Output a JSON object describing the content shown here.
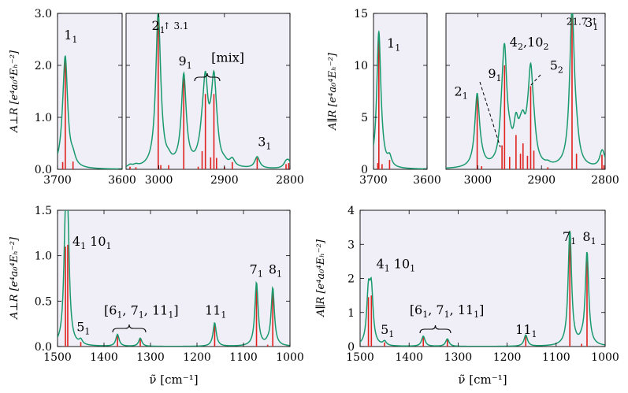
{
  "chart_data": [
    {
      "name": "perp-CH",
      "type": "line",
      "ylabel": "A⊥R [e⁴a₀⁴Eₕ⁻²]",
      "ylim": [
        0,
        3.0
      ],
      "yticks": [
        0.0,
        1.0,
        2.0,
        3.0
      ],
      "ytick_labels": [
        "0.0",
        "1.0",
        "2.0",
        "3.0"
      ],
      "width_cm": 8,
      "segments": [
        {
          "xlim": [
            3700,
            3600
          ],
          "xticks": [
            3700,
            3600
          ],
          "xtick_labels": [
            "3700",
            "3600"
          ]
        },
        {
          "xlim": [
            3050,
            2800
          ],
          "xticks": [
            3000,
            2900,
            2800
          ],
          "xtick_labels": [
            "3000",
            "2900",
            "2800"
          ]
        }
      ],
      "sticks": [
        {
          "x": 3688,
          "y": 2.08
        },
        {
          "x": 3692,
          "y": 0.14
        },
        {
          "x": 3676,
          "y": 0.15
        },
        {
          "x": 3044,
          "y": 0.05
        },
        {
          "x": 3035,
          "y": 0.04
        },
        {
          "x": 3001,
          "y": 2.95
        },
        {
          "x": 2997,
          "y": 0.08
        },
        {
          "x": 2985,
          "y": 0.08
        },
        {
          "x": 2962,
          "y": 1.75
        },
        {
          "x": 2940,
          "y": 0.05
        },
        {
          "x": 2934,
          "y": 0.35
        },
        {
          "x": 2929,
          "y": 1.45
        },
        {
          "x": 2921,
          "y": 0.23
        },
        {
          "x": 2916,
          "y": 1.45
        },
        {
          "x": 2912,
          "y": 0.22
        },
        {
          "x": 2900,
          "y": 0.05
        },
        {
          "x": 2888,
          "y": 0.14
        },
        {
          "x": 2850,
          "y": 0.22
        },
        {
          "x": 2806,
          "y": 0.1
        },
        {
          "x": 2802,
          "y": 0.12
        }
      ],
      "annotations": [
        {
          "label": "1",
          "sub": "1",
          "x": 3690,
          "y": 2.5
        },
        {
          "label": "2",
          "sub": "1",
          "x": 3011,
          "y": 2.68
        },
        {
          "label": "↑ 3.1",
          "x": 2994,
          "y": 2.7
        },
        {
          "label": "9",
          "sub": "1",
          "x": 2970,
          "y": 2.0
        },
        {
          "label": "[mix]",
          "x": 2920,
          "y": 2.07
        },
        {
          "label": "3",
          "sub": "1",
          "x": 2849,
          "y": 0.45
        }
      ]
    },
    {
      "name": "par-CH",
      "type": "line",
      "ylabel": "A∥R [e⁴a₀⁴Eₕ⁻²]",
      "ylim": [
        0,
        15
      ],
      "yticks": [
        0,
        5,
        10,
        15
      ],
      "ytick_labels": [
        "0",
        "5",
        "10",
        "15"
      ],
      "segments": [
        {
          "xlim": [
            3700,
            3600
          ],
          "xticks": [
            3700,
            3600
          ],
          "xtick_labels": [
            "3700",
            "3600"
          ]
        },
        {
          "xlim": [
            3050,
            2800
          ],
          "xticks": [
            3000,
            2900,
            2800
          ],
          "xtick_labels": [
            "3000",
            "2900",
            "2800"
          ]
        }
      ],
      "sticks": [
        {
          "x": 3690,
          "y": 12.5
        },
        {
          "x": 3692,
          "y": 0.6
        },
        {
          "x": 3684,
          "y": 0.5
        },
        {
          "x": 3670,
          "y": 0.9
        },
        {
          "x": 3001,
          "y": 7.0
        },
        {
          "x": 2994,
          "y": 0.3
        },
        {
          "x": 2962,
          "y": 2.3
        },
        {
          "x": 2958,
          "y": 10.0
        },
        {
          "x": 2950,
          "y": 1.2
        },
        {
          "x": 2940,
          "y": 3.3
        },
        {
          "x": 2933,
          "y": 1.5
        },
        {
          "x": 2929,
          "y": 2.5
        },
        {
          "x": 2922,
          "y": 1.3
        },
        {
          "x": 2917,
          "y": 8.0
        },
        {
          "x": 2912,
          "y": 1.8
        },
        {
          "x": 2890,
          "y": 0.2
        },
        {
          "x": 2852,
          "y": 15.0
        },
        {
          "x": 2845,
          "y": 1.5
        },
        {
          "x": 2805,
          "y": 1.4
        },
        {
          "x": 2802,
          "y": 0.4
        }
      ],
      "annotations": [
        {
          "label": "1",
          "sub": "1",
          "x": 3675,
          "y": 11.7
        },
        {
          "label": "2",
          "sub": "1",
          "x": 3037,
          "y": 7.1
        },
        {
          "label": "9",
          "sub": "1",
          "x": 2984,
          "y": 8.8
        },
        {
          "label": "4",
          "sub": "2",
          "label2": ",10",
          "sub2": "2",
          "x": 2950,
          "y": 11.8
        },
        {
          "label": "5",
          "sub": "2",
          "x": 2887,
          "y": 9.6
        },
        {
          "label": "21.7 ↑",
          "x": 2861,
          "y": 13.9
        },
        {
          "label": "3",
          "sub": "1",
          "x": 2832,
          "y": 13.7
        }
      ]
    },
    {
      "name": "perp-fingerprint",
      "type": "line",
      "xlabel": "ν̃ [cm⁻¹]",
      "ylabel": "A⊥R [e⁴a₀⁴Eₕ⁻²]",
      "xlim": [
        1500,
        1000
      ],
      "ylim": [
        0,
        1.5
      ],
      "xticks": [
        1500,
        1400,
        1300,
        1200,
        1100,
        1000
      ],
      "xtick_labels": [
        "1500",
        "1400",
        "1300",
        "1200",
        "1100",
        "1000"
      ],
      "yticks": [
        0.0,
        0.5,
        1.0,
        1.5
      ],
      "ytick_labels": [
        "0.0",
        "0.5",
        "1.0",
        "1.5"
      ],
      "sticks": [
        {
          "x": 1483,
          "y": 1.1
        },
        {
          "x": 1478,
          "y": 1.12
        },
        {
          "x": 1450,
          "y": 0.05
        },
        {
          "x": 1371,
          "y": 0.13
        },
        {
          "x": 1322,
          "y": 0.09
        },
        {
          "x": 1162,
          "y": 0.26
        },
        {
          "x": 1072,
          "y": 0.7
        },
        {
          "x": 1048,
          "y": 0.02
        },
        {
          "x": 1037,
          "y": 0.64
        }
      ],
      "annotations": [
        {
          "label": "4",
          "sub": "1",
          "label2": " 10",
          "sub2": "1",
          "x": 1468,
          "y": 1.11
        },
        {
          "label": "5",
          "sub": "1",
          "x": 1459,
          "y": 0.17
        },
        {
          "label": "[6",
          "sub": "1",
          "label2": ", 7",
          "sub2": "1",
          "label3": ", 11",
          "sub3": "1",
          "label4": "]",
          "x": 1400,
          "y": 0.35
        },
        {
          "label": "11",
          "sub": "1",
          "x": 1183,
          "y": 0.35
        },
        {
          "label": "7",
          "sub": "1",
          "x": 1087,
          "y": 0.8
        },
        {
          "label": "8",
          "sub": "1",
          "x": 1046,
          "y": 0.8
        }
      ]
    },
    {
      "name": "par-fingerprint",
      "type": "line",
      "xlabel": "ν̃ [cm⁻¹]",
      "ylabel": "A∥R [e⁴a₀⁴Eₕ⁻²]",
      "xlim": [
        1500,
        1000
      ],
      "ylim": [
        0,
        4
      ],
      "xticks": [
        1500,
        1400,
        1300,
        1200,
        1100,
        1000
      ],
      "xtick_labels": [
        "1500",
        "1400",
        "1300",
        "1200",
        "1100",
        "1000"
      ],
      "yticks": [
        0,
        1,
        2,
        3,
        4
      ],
      "ytick_labels": [
        "0",
        "1",
        "2",
        "3",
        "4"
      ],
      "sticks": [
        {
          "x": 1483,
          "y": 1.45
        },
        {
          "x": 1477,
          "y": 1.5
        },
        {
          "x": 1450,
          "y": 0.12
        },
        {
          "x": 1371,
          "y": 0.3
        },
        {
          "x": 1322,
          "y": 0.22
        },
        {
          "x": 1162,
          "y": 0.33
        },
        {
          "x": 1072,
          "y": 3.4
        },
        {
          "x": 1048,
          "y": 0.08
        },
        {
          "x": 1037,
          "y": 2.75
        }
      ],
      "annotations": [
        {
          "label": "4",
          "sub": "1",
          "label2": " 10",
          "sub2": "1",
          "x": 1467,
          "y": 2.3
        },
        {
          "label": "5",
          "sub": "1",
          "x": 1458,
          "y": 0.37
        },
        {
          "label": "[6",
          "sub": "1",
          "label2": ", 7",
          "sub2": "1",
          "label3": ", 11",
          "sub3": "1",
          "label4": "]",
          "x": 1399,
          "y": 0.95
        },
        {
          "label": "11",
          "sub": "1",
          "x": 1183,
          "y": 0.37
        },
        {
          "label": "7",
          "sub": "1",
          "x": 1087,
          "y": 3.1
        },
        {
          "label": "8",
          "sub": "1",
          "x": 1046,
          "y": 3.1
        }
      ]
    }
  ]
}
